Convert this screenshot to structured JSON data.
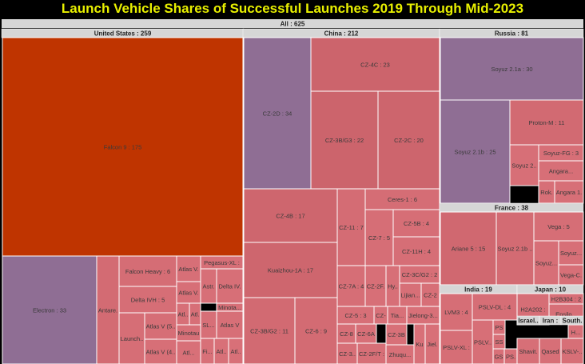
{
  "title": "Launch Vehicle Shares of Successful Launches 2019 Through Mid-2023",
  "colors": {
    "background": "#000000",
    "title": "#e8f000",
    "header": "#d6d6d6",
    "border": "#ffffff",
    "high": "#bf3400",
    "mid": "#d87078",
    "low": "#8f6e94"
  },
  "chart_data": {
    "type": "treemap",
    "root": {
      "label": "All : 625",
      "value": 625
    },
    "groups": [
      {
        "label": "United States : 259",
        "value": 259,
        "items": [
          {
            "label": "Falcon 9 : 175",
            "value": 175
          },
          {
            "label": "Electron : 33",
            "value": 33
          },
          {
            "label": "Antare...",
            "value": 9
          },
          {
            "label": "Falcon Heavy : 6",
            "value": 6
          },
          {
            "label": "Delta IVH : 5",
            "value": 5
          },
          {
            "label": "Launch...",
            "value": 4
          },
          {
            "label": "Atlas V (5...",
            "value": 4
          },
          {
            "label": "Atlas V (4...",
            "value": 3
          },
          {
            "label": "Atlas V...",
            "value": 2
          },
          {
            "label": "Atlas V...",
            "value": 2
          },
          {
            "label": "Pegasus-XL : 2",
            "value": 2
          },
          {
            "label": "Astr...",
            "value": 2
          },
          {
            "label": "Delta IV...",
            "value": 2
          },
          {
            "label": "Minota...",
            "value": 2
          },
          {
            "label": "Atl...",
            "value": 2
          },
          {
            "label": "Atl...",
            "value": 2
          },
          {
            "label": "SL...",
            "value": 2
          },
          {
            "label": "Atlas V 4...",
            "value": 2
          },
          {
            "label": "Minotau...",
            "value": 2
          },
          {
            "label": "Fi...",
            "value": 1
          },
          {
            "label": "Atl...",
            "value": 1
          },
          {
            "label": "Atl...",
            "value": 1
          },
          {
            "label": "Atl...",
            "value": 1
          }
        ]
      },
      {
        "label": "China : 212",
        "value": 212,
        "items": [
          {
            "label": "CZ-2D : 34",
            "value": 34
          },
          {
            "label": "CZ-4C : 23",
            "value": 23
          },
          {
            "label": "CZ-3B/G3 : 22",
            "value": 22
          },
          {
            "label": "CZ-2C : 20",
            "value": 20
          },
          {
            "label": "CZ-4B : 17",
            "value": 17
          },
          {
            "label": "Kuaizhou-1A : 17",
            "value": 17
          },
          {
            "label": "CZ-3B/G2 : 11",
            "value": 11
          },
          {
            "label": "CZ-6 : 9",
            "value": 9
          },
          {
            "label": "Ceres-1 : 6",
            "value": 6
          },
          {
            "label": "CZ-11 : 7",
            "value": 7
          },
          {
            "label": "CZ-7 : 5",
            "value": 5
          },
          {
            "label": "CZ-5B : 4",
            "value": 4
          },
          {
            "label": "CZ-11H : 4",
            "value": 4
          },
          {
            "label": "CZ-7A : 4",
            "value": 4
          },
          {
            "label": "CZ-2F...",
            "value": 3
          },
          {
            "label": "Hy...",
            "value": 2
          },
          {
            "label": "CZ-3C/G2 : 2",
            "value": 2
          },
          {
            "label": "Lijian...",
            "value": 2
          },
          {
            "label": "CZ-2F...",
            "value": 2
          },
          {
            "label": "CZ-5 : 3",
            "value": 3
          },
          {
            "label": "CZ-8 : 2",
            "value": 2
          },
          {
            "label": "CZ-6A ...",
            "value": 2
          },
          {
            "label": "CZ-...",
            "value": 1
          },
          {
            "label": "Tia...",
            "value": 1
          },
          {
            "label": "Jielong-3...",
            "value": 1
          },
          {
            "label": "CZ-3...",
            "value": 2
          },
          {
            "label": "CZ-2F/T : 2",
            "value": 2
          },
          {
            "label": "CZ-3B/...",
            "value": 1
          },
          {
            "label": "Zhuqu...",
            "value": 1
          },
          {
            "label": "Kua...",
            "value": 1
          },
          {
            "label": "Jiel...",
            "value": 1
          }
        ]
      },
      {
        "label": "Russia : 81",
        "value": 81,
        "items": [
          {
            "label": "Soyuz 2.1a : 30",
            "value": 30
          },
          {
            "label": "Soyuz 2.1b : 25",
            "value": 25
          },
          {
            "label": "Proton-M : 11",
            "value": 11
          },
          {
            "label": "Soyuz-FG : 3",
            "value": 3
          },
          {
            "label": "Soyuz 2...",
            "value": 3
          },
          {
            "label": "Angara...",
            "value": 2
          },
          {
            "label": "Rok...",
            "value": 2
          },
          {
            "label": "Angara 1...",
            "value": 2
          }
        ]
      },
      {
        "label": "France : 38",
        "value": 38,
        "items": [
          {
            "label": "Ariane 5 : 15",
            "value": 15
          },
          {
            "label": "Soyuz 2.1b ...",
            "value": 10
          },
          {
            "label": "Vega : 5",
            "value": 5
          },
          {
            "label": "Soyuz...",
            "value": 3
          },
          {
            "label": "Soyuz...",
            "value": 3
          },
          {
            "label": "Vega-C...",
            "value": 2
          }
        ]
      },
      {
        "label": "India : 19",
        "value": 19,
        "items": [
          {
            "label": "LVM3 : 4",
            "value": 4
          },
          {
            "label": "PSLV-DL : 4",
            "value": 4
          },
          {
            "label": "PSLV-XL : 4",
            "value": 4
          },
          {
            "label": "PSLV...",
            "value": 3
          },
          {
            "label": "PSLV : 1",
            "value": 1
          },
          {
            "label": "SSLV : 1",
            "value": 1
          },
          {
            "label": "GS...",
            "value": 1
          },
          {
            "label": "PS...",
            "value": 1
          }
        ]
      },
      {
        "label": "Japan : 10",
        "value": 10,
        "items": [
          {
            "label": "H2A202 : 5",
            "value": 5
          },
          {
            "label": "H2B304 : 2",
            "value": 2
          },
          {
            "label": "Epsilo...",
            "value": 2
          },
          {
            "label": "H...",
            "value": 1
          }
        ]
      },
      {
        "label": "Israel...",
        "value": 2,
        "items": [
          {
            "label": "Shavit...",
            "value": 2
          }
        ]
      },
      {
        "label": "Iran : 2",
        "value": 2,
        "items": [
          {
            "label": "Qased...",
            "value": 2
          }
        ]
      },
      {
        "label": "South...",
        "value": 2,
        "items": [
          {
            "label": "KSLV-...",
            "value": 2
          }
        ]
      }
    ]
  }
}
